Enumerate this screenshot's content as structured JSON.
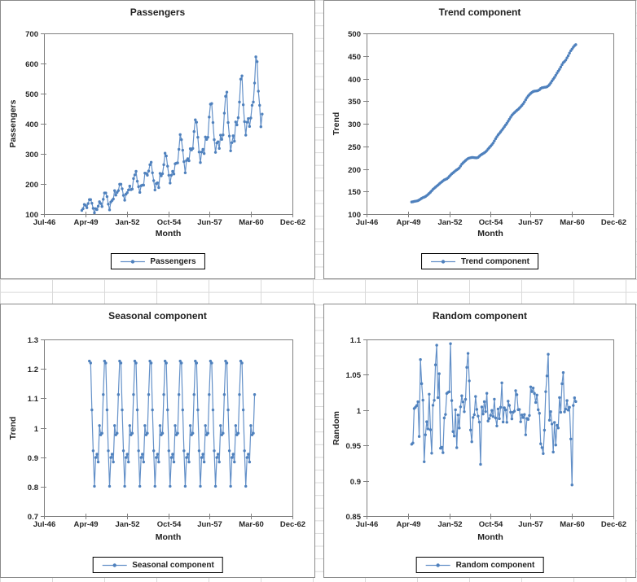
{
  "workbook": {
    "grid_color": "#d9d9d9",
    "chart_border_color": "#8a8a8a",
    "axis_color": "#808080",
    "series_color": "#4f81bd",
    "series_line_color": "#6390c8",
    "legend_border_color": "#000000",
    "text_color": "#1f1f1f"
  },
  "x_axis": {
    "title": "Month",
    "tick_labels": [
      "Jul-46",
      "Apr-49",
      "Jan-52",
      "Oct-54",
      "Jun-57",
      "Mar-60",
      "Dec-62"
    ],
    "tick_months_since_jul46": [
      0,
      33,
      66,
      99,
      131,
      164,
      197
    ],
    "range_months_since_jul46": [
      0,
      197
    ]
  },
  "charts": [
    {
      "key": "passengers",
      "title": "Passengers",
      "y_axis_title": "Passengers",
      "legend_label": "Passengers",
      "y_ticks": [
        "100",
        "200",
        "300",
        "400",
        "500",
        "600",
        "700"
      ],
      "y_min": 100,
      "y_max": 700
    },
    {
      "key": "trend",
      "title": "Trend component",
      "y_axis_title": "Trend",
      "legend_label": "Trend component",
      "y_ticks": [
        "100",
        "150",
        "200",
        "250",
        "300",
        "350",
        "400",
        "450",
        "500"
      ],
      "y_min": 100,
      "y_max": 500
    },
    {
      "key": "seasonal",
      "title": "Seasonal component",
      "y_axis_title": "Trend",
      "legend_label": "Seasonal component",
      "y_ticks": [
        "0.7",
        "0.8",
        "0.9",
        "1",
        "1.1",
        "1.2",
        "1.3"
      ],
      "y_min": 0.7,
      "y_max": 1.3
    },
    {
      "key": "random",
      "title": "Random component",
      "y_axis_title": "Random",
      "legend_label": "Random component",
      "y_ticks": [
        "0.85",
        "0.9",
        "0.95",
        "1",
        "1.05",
        "1.1"
      ],
      "y_min": 0.85,
      "y_max": 1.1
    }
  ],
  "chart_data": [
    {
      "type": "line",
      "title": "Passengers",
      "xlabel": "Month",
      "ylabel": "Passengers",
      "legend": "Passengers",
      "x_tick_labels": [
        "Jul-46",
        "Apr-49",
        "Jan-52",
        "Oct-54",
        "Jun-57",
        "Mar-60",
        "Dec-62"
      ],
      "xlim": [
        "Jul-1946",
        "Dec-1962"
      ],
      "ylim": [
        100,
        700
      ],
      "grid": false,
      "legend_position": "bottom",
      "x_start": "Jan-1949",
      "frequency": "monthly",
      "start_month_offset_jul46": 30,
      "values": [
        112,
        118,
        132,
        129,
        121,
        135,
        148,
        148,
        136,
        119,
        104,
        118,
        115,
        126,
        141,
        135,
        125,
        149,
        170,
        170,
        158,
        133,
        114,
        140,
        145,
        150,
        178,
        163,
        172,
        178,
        199,
        199,
        184,
        162,
        146,
        166,
        171,
        180,
        193,
        181,
        183,
        218,
        230,
        242,
        209,
        191,
        172,
        194,
        196,
        196,
        236,
        235,
        229,
        243,
        264,
        272,
        237,
        211,
        180,
        201,
        204,
        188,
        235,
        227,
        234,
        264,
        302,
        293,
        259,
        229,
        203,
        229,
        242,
        233,
        267,
        269,
        270,
        315,
        364,
        347,
        312,
        274,
        237,
        278,
        284,
        277,
        317,
        313,
        318,
        374,
        413,
        405,
        355,
        306,
        271,
        306,
        315,
        301,
        356,
        348,
        355,
        422,
        465,
        467,
        404,
        347,
        305,
        336,
        340,
        318,
        362,
        348,
        363,
        435,
        491,
        505,
        404,
        359,
        310,
        337,
        360,
        342,
        406,
        396,
        420,
        472,
        548,
        559,
        463,
        407,
        362,
        405,
        417,
        391,
        419,
        461,
        472,
        535,
        622,
        606,
        508,
        461,
        390,
        432
      ]
    },
    {
      "type": "line",
      "title": "Trend component",
      "xlabel": "Month",
      "ylabel": "Trend",
      "legend": "Trend component",
      "xlim": [
        "Jul-1946",
        "Dec-1962"
      ],
      "ylim": [
        100,
        500
      ],
      "grid": false,
      "legend_position": "bottom",
      "x_start": "Jul-1949",
      "frequency": "monthly",
      "start_month_offset_jul46": 36,
      "note": "centered 12-month moving average of passengers",
      "values": [
        126.79,
        127.25,
        127.96,
        128.58,
        129.0,
        129.75,
        131.25,
        133.08,
        134.92,
        136.42,
        137.42,
        138.75,
        140.92,
        143.17,
        145.71,
        148.42,
        151.54,
        154.71,
        157.13,
        159.54,
        161.83,
        164.13,
        166.67,
        169.08,
        171.25,
        173.58,
        175.46,
        176.83,
        178.04,
        180.17,
        183.13,
        186.21,
        189.04,
        191.29,
        193.58,
        195.83,
        198.04,
        199.75,
        202.21,
        206.25,
        210.42,
        213.38,
        215.83,
        218.5,
        220.92,
        222.92,
        224.08,
        224.71,
        225.33,
        225.33,
        224.96,
        224.58,
        224.46,
        225.54,
        228.0,
        230.46,
        232.25,
        233.92,
        235.63,
        237.75,
        240.5,
        243.96,
        247.17,
        250.25,
        253.5,
        257.13,
        261.83,
        266.67,
        271.13,
        275.21,
        278.5,
        281.96,
        285.75,
        289.33,
        293.25,
        297.17,
        301.0,
        305.46,
        309.96,
        314.42,
        318.63,
        321.75,
        324.5,
        327.08,
        329.54,
        331.83,
        334.46,
        337.54,
        340.54,
        344.08,
        348.25,
        353.0,
        357.63,
        361.38,
        364.5,
        367.17,
        369.46,
        371.21,
        372.17,
        372.42,
        372.75,
        373.63,
        375.25,
        377.92,
        379.5,
        380.0,
        380.71,
        380.96,
        381.83,
        383.67,
        386.5,
        390.33,
        394.71,
        398.63,
        402.54,
        407.17,
        411.88,
        416.33,
        420.5,
        425.5,
        430.71,
        435.13,
        437.71,
        440.96,
        445.83,
        450.63,
        456.33,
        461.38,
        465.21,
        469.33,
        472.75,
        475.04
      ]
    },
    {
      "type": "line",
      "title": "Seasonal component",
      "xlabel": "Month",
      "ylabel": "Trend",
      "legend": "Seasonal component",
      "xlim": [
        "Jul-1946",
        "Dec-1962"
      ],
      "ylim": [
        0.7,
        1.3
      ],
      "grid": false,
      "legend_position": "bottom",
      "x_start": "Jul-1949",
      "frequency": "monthly",
      "start_month_offset_jul46": 36,
      "n_points": 132,
      "note": "monthly multiplicative seasonal indices, repeating Jul-1949 .. Jun-1960",
      "monthly_factors_jan_to_dec": [
        0.9102,
        0.8836,
        1.0074,
        0.9759,
        0.9814,
        1.1128,
        1.2266,
        1.2199,
        1.0605,
        0.9218,
        0.8012,
        0.8988
      ]
    },
    {
      "type": "line",
      "title": "Random component",
      "xlabel": "Month",
      "ylabel": "Random",
      "legend": "Random component",
      "xlim": [
        "Jul-1946",
        "Dec-1962"
      ],
      "ylim": [
        0.85,
        1.1
      ],
      "grid": false,
      "legend_position": "bottom",
      "x_start": "Jul-1949",
      "frequency": "monthly",
      "start_month_offset_jul46": 36,
      "n_points": 132,
      "derivation": "passengers / (trend * seasonal)"
    }
  ]
}
